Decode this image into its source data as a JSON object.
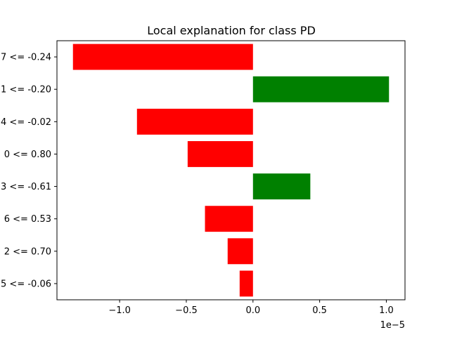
{
  "chart_data": {
    "type": "bar",
    "orientation": "horizontal",
    "title": "Local explanation for class PD",
    "xlabel": "",
    "ylabel": "",
    "x_offset_label": "1e−5",
    "x_scale": 1e-05,
    "xlim": [
      -1.47,
      1.14
    ],
    "x_ticks": [
      -1.0,
      -0.5,
      0.0,
      0.5,
      1.0
    ],
    "x_tick_labels": [
      "−1.0",
      "−0.5",
      "0.0",
      "0.5",
      "1.0"
    ],
    "grid": false,
    "legend": "none",
    "categories": [
      "7 <= -0.24",
      "1 <= -0.20",
      "4 <= -0.02",
      "0 <= 0.80",
      "3 <= -0.61",
      "6 <= 0.53",
      "2 <= 0.70",
      "5 <= -0.06"
    ],
    "values": [
      -1.35,
      1.02,
      -0.87,
      -0.49,
      0.43,
      -0.36,
      -0.19,
      -0.1
    ],
    "colors": {
      "positive": "#008000",
      "negative": "#ff0000"
    }
  }
}
